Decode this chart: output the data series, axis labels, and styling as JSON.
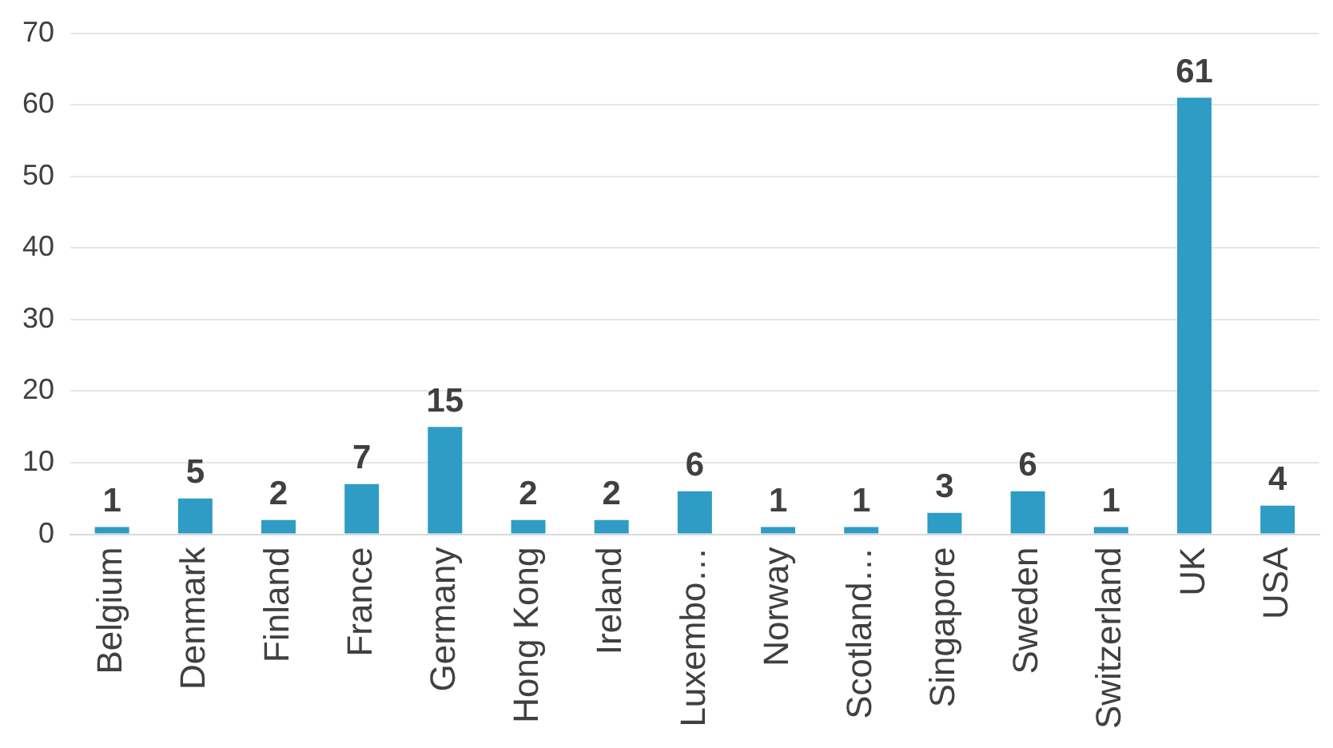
{
  "chart_data": {
    "type": "bar",
    "categories": [
      "Belgium",
      "Denmark",
      "Finland",
      "France",
      "Germany",
      "Hong Kong",
      "Ireland",
      "Luxembo…",
      "Norway",
      "Scotland…",
      "Singapore",
      "Sweden",
      "Switzerland",
      "UK",
      "USA"
    ],
    "values": [
      1,
      5,
      2,
      7,
      15,
      2,
      2,
      6,
      1,
      1,
      3,
      6,
      1,
      61,
      4
    ],
    "color": "#2e9cc4",
    "ylim": [
      0,
      70
    ],
    "yticks": [
      0,
      10,
      20,
      30,
      40,
      50,
      60,
      70
    ],
    "grid": "y",
    "data_labels": true,
    "legend": false
  }
}
